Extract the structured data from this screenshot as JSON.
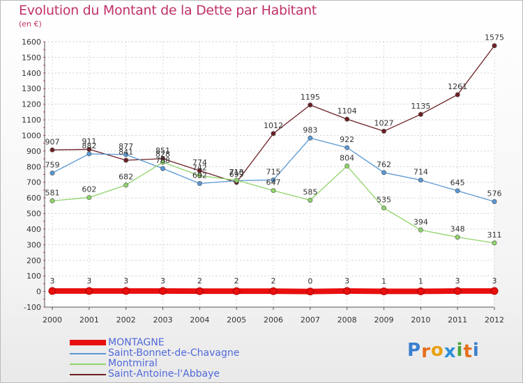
{
  "title": "Evolution du Montant de la Dette par Habitant",
  "unit": "(en €)",
  "logo": {
    "letters": [
      "P",
      "r",
      "o",
      "x",
      "i",
      "t",
      "i"
    ],
    "colors": [
      "#3a7fd0",
      "#e56e1c",
      "#e8a114",
      "#2e8fd8",
      "#4aa33a",
      "#e56e1c",
      "#3a7fd0"
    ]
  },
  "chart_data": {
    "type": "line",
    "x": [
      "2000",
      "2001",
      "2002",
      "2003",
      "2004",
      "2005",
      "2006",
      "2007",
      "2008",
      "2009",
      "2010",
      "2011",
      "2012"
    ],
    "ylim": [
      -100,
      1600
    ],
    "yticks": [
      "-100",
      "0",
      "100",
      "200",
      "300",
      "400",
      "500",
      "600",
      "700",
      "800",
      "900",
      "1000",
      "1100",
      "1200",
      "1300",
      "1400",
      "1500",
      "1600"
    ],
    "grid": true,
    "series": [
      {
        "name": "Saint-Antoine-l'Abbaye",
        "color": "#6b1f24",
        "values": [
          907,
          911,
          841,
          851,
          774,
          699,
          1012,
          1195,
          1104,
          1027,
          1135,
          1261,
          1575
        ]
      },
      {
        "name": "Saint-Bonnet-de-Chavagne",
        "color": "#5a97d2",
        "values": [
          759,
          882,
          877,
          788,
          692,
          710,
          715,
          983,
          922,
          762,
          714,
          645,
          576
        ]
      },
      {
        "name": "Montmiral",
        "color": "#8fd36a",
        "values": [
          581,
          602,
          682,
          828,
          742,
          713,
          647,
          585,
          804,
          535,
          394,
          348,
          311
        ]
      },
      {
        "name": "MONTAGNE",
        "color": "#e80f0f",
        "values": [
          3,
          3,
          3,
          3,
          2,
          2,
          2,
          0,
          3,
          1,
          1,
          3,
          3
        ]
      }
    ],
    "legend_order": [
      "MONTAGNE",
      "Saint-Bonnet-de-Chavagne",
      "Montmiral",
      "Saint-Antoine-l'Abbaye"
    ],
    "legend_position": "bottom-left"
  }
}
